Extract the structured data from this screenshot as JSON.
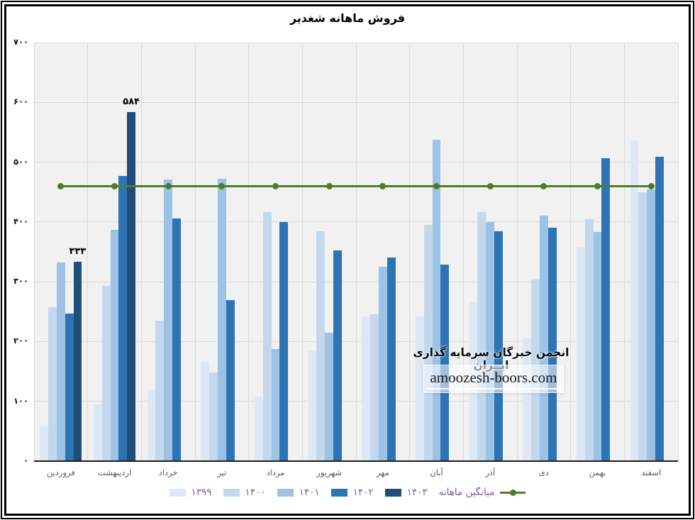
{
  "chart_data": {
    "type": "bar",
    "title": "فروش ماهانه شغدیر",
    "categories": [
      "فروردین",
      "اردیبهشت",
      "خرداد",
      "تیر",
      "مرداد",
      "شهریور",
      "مهر",
      "آبان",
      "آذر",
      "دی",
      "بهمن",
      "اسفند"
    ],
    "series": [
      {
        "name": "۱۳۹۹",
        "color": "#dce8f5",
        "values": [
          58,
          95,
          120,
          166,
          108,
          185,
          242,
          242,
          266,
          205,
          358,
          536
        ]
      },
      {
        "name": "۱۴۰۰",
        "color": "#c3d8ed",
        "values": [
          257,
          293,
          235,
          148,
          416,
          384,
          246,
          395,
          416,
          304,
          405,
          450
        ]
      },
      {
        "name": "۱۴۰۱",
        "color": "#9cc2e5",
        "values": [
          332,
          387,
          471,
          472,
          188,
          215,
          325,
          538,
          400,
          410,
          383,
          455
        ]
      },
      {
        "name": "۱۴۰۲",
        "color": "#2e74b5",
        "values": [
          247,
          477,
          406,
          269,
          400,
          352,
          340,
          329,
          385,
          390,
          507,
          509
        ]
      },
      {
        "name": "۱۴۰۳",
        "color": "#1f4e79",
        "values": [
          333,
          584,
          null,
          null,
          null,
          null,
          null,
          null,
          null,
          null,
          null,
          null
        ]
      }
    ],
    "average_line": {
      "name": "میانگین ماهانه",
      "color": "#4e7d28",
      "value": 460
    },
    "data_labels": [
      {
        "series": "۱۴۰۳",
        "category": "فروردین",
        "text": "۳۳۳"
      },
      {
        "series": "۱۴۰۳",
        "category": "اردیبهشت",
        "text": "۵۸۴"
      }
    ],
    "ylim": [
      0,
      700
    ],
    "ytick_step": 100,
    "ytick_labels": [
      "۷۰۰",
      "۶۰۰",
      "۵۰۰",
      "۴۰۰",
      "۳۰۰",
      "۲۰۰",
      "۱۰۰",
      "۰"
    ],
    "legend_position": "bottom",
    "grid": true
  },
  "watermark": {
    "org": "انجمن خبرگان سرمایه گذاری ایــران",
    "site": "amoozesh-boors.com"
  },
  "style": {
    "plot_bg": "#f1f1f1",
    "gridline": "#dadada",
    "legend_text": "#7b61a5",
    "x_axis_text": "#595959",
    "y_axis_text": "#111111"
  }
}
